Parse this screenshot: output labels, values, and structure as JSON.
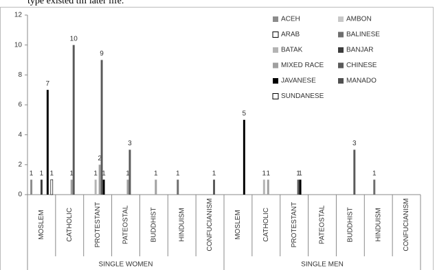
{
  "caption": "type existed till later life.",
  "chart_data": {
    "type": "bar",
    "categories": [
      "MOSLEM",
      "CATHOLIC",
      "PROTESTANT",
      "PATEOSTAL",
      "BUDDHIST",
      "HINDUISM",
      "CONFUCIANISM",
      "MOSLEM",
      "CATHOLIC",
      "PROTESTANT",
      "PATEOSTAL",
      "BUDDHIST",
      "HINDUISM",
      "CONFUCIANISM"
    ],
    "groups": [
      "SINGLE WOMEN",
      "SINGLE MEN"
    ],
    "ylim": [
      0,
      12
    ],
    "yticks": [
      0,
      2,
      4,
      6,
      8,
      10,
      12
    ],
    "series": [
      {
        "name": "ACEH",
        "color": "#8c8c8c",
        "values": [
          1,
          null,
          null,
          null,
          null,
          null,
          null,
          null,
          null,
          null,
          null,
          null,
          null,
          null
        ]
      },
      {
        "name": "AMBON",
        "color": "#c8c8c8",
        "values": [
          null,
          null,
          null,
          null,
          null,
          null,
          null,
          null,
          null,
          null,
          null,
          null,
          null,
          null
        ]
      },
      {
        "name": "ARAB",
        "color": "#ffffff",
        "values": [
          null,
          null,
          null,
          null,
          null,
          null,
          null,
          null,
          null,
          null,
          null,
          null,
          null,
          null
        ]
      },
      {
        "name": "BALINESE",
        "color": "#6e6e6e",
        "values": [
          null,
          null,
          null,
          null,
          null,
          1,
          null,
          null,
          null,
          null,
          null,
          null,
          1,
          null
        ]
      },
      {
        "name": "BATAK",
        "color": "#b4b4b4",
        "values": [
          null,
          null,
          1,
          null,
          null,
          null,
          null,
          null,
          1,
          null,
          null,
          null,
          null,
          null
        ]
      },
      {
        "name": "BANJAR",
        "color": "#3c3c3c",
        "values": [
          1,
          null,
          null,
          null,
          null,
          null,
          null,
          null,
          null,
          null,
          null,
          null,
          null,
          null
        ]
      },
      {
        "name": "MIXED RACE",
        "color": "#a0a0a0",
        "values": [
          null,
          1,
          2,
          1,
          1,
          null,
          null,
          null,
          1,
          null,
          null,
          null,
          null,
          null
        ]
      },
      {
        "name": "CHINESE",
        "color": "#5a5a5a",
        "values": [
          null,
          10,
          9,
          3,
          null,
          null,
          1,
          null,
          null,
          1,
          null,
          3,
          null,
          null
        ]
      },
      {
        "name": "JAVANESE",
        "color": "#000000",
        "values": [
          7,
          null,
          1,
          null,
          null,
          null,
          null,
          5,
          null,
          1,
          null,
          null,
          null,
          null
        ]
      },
      {
        "name": "MANADO",
        "color": "#505050",
        "values": [
          null,
          null,
          null,
          null,
          null,
          null,
          null,
          null,
          null,
          null,
          null,
          null,
          null,
          null
        ]
      },
      {
        "name": "SUNDANESE",
        "color": "#ffffff",
        "values": [
          1,
          null,
          null,
          null,
          null,
          null,
          null,
          null,
          null,
          null,
          null,
          null,
          null,
          null
        ]
      }
    ]
  }
}
